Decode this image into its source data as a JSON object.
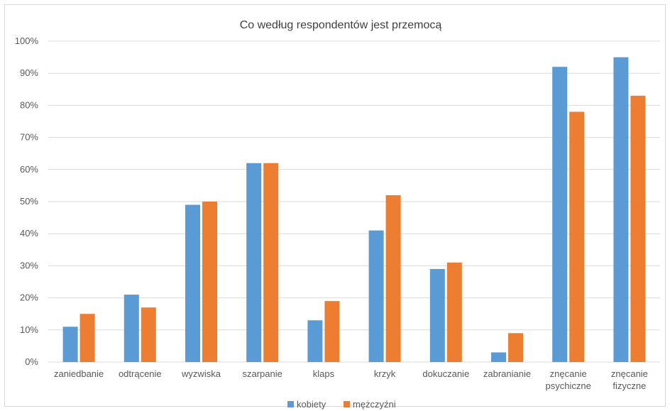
{
  "chart_data": {
    "type": "bar",
    "title": "Co według respondentów jest przemocą",
    "xlabel": "",
    "ylabel": "",
    "ylim": [
      0,
      100
    ],
    "y_ticks": [
      "0%",
      "10%",
      "20%",
      "30%",
      "40%",
      "50%",
      "60%",
      "70%",
      "80%",
      "90%",
      "100%"
    ],
    "grid": true,
    "legend_position": "bottom",
    "categories": [
      [
        "zaniedbanie"
      ],
      [
        "odtrącenie"
      ],
      [
        "wyzwiska"
      ],
      [
        "szarpanie"
      ],
      [
        "klaps"
      ],
      [
        "krzyk"
      ],
      [
        "dokuczanie"
      ],
      [
        "zabranianie"
      ],
      [
        "znęcanie",
        "psychiczne"
      ],
      [
        "znęcanie",
        "fizyczne"
      ]
    ],
    "series": [
      {
        "name": "kobiety",
        "color": "#5b9bd5",
        "values": [
          11,
          21,
          49,
          62,
          13,
          41,
          29,
          3,
          92,
          95
        ]
      },
      {
        "name": "mężczyźni",
        "color": "#ed7d31",
        "values": [
          15,
          17,
          50,
          62,
          19,
          52,
          31,
          9,
          78,
          83
        ]
      }
    ]
  }
}
